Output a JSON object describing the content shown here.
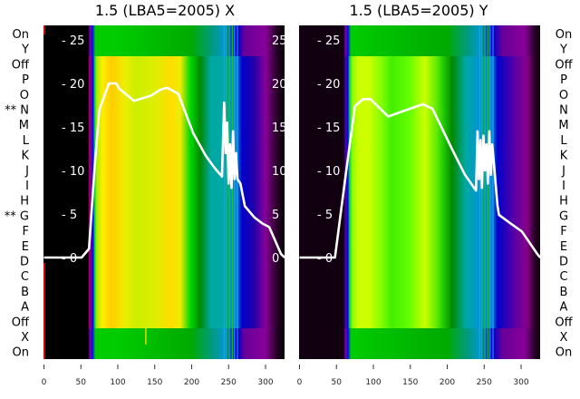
{
  "chart_data": [
    {
      "type": "line",
      "title": "1.5 (LBA5=2005) X",
      "xlim": [
        0,
        326
      ],
      "ylim": [
        -11.7,
        26.7
      ],
      "x_ticks": [
        "0",
        "50",
        "100",
        "150",
        "200",
        "250",
        "300"
      ],
      "y_ticks": [
        "0",
        "5",
        "10",
        "15",
        "20",
        "25"
      ],
      "series": [
        {
          "name": "X",
          "color": "#ffffff",
          "points": [
            [
              0,
              0
            ],
            [
              51,
              0
            ],
            [
              61,
              1
            ],
            [
              69,
              10.8
            ],
            [
              75,
              17
            ],
            [
              88,
              20
            ],
            [
              98,
              20
            ],
            [
              102,
              19.4
            ],
            [
              122,
              18
            ],
            [
              145,
              18.6
            ],
            [
              158,
              19.3
            ],
            [
              167,
              19.5
            ],
            [
              182,
              18.8
            ],
            [
              202,
              14.3
            ],
            [
              219,
              11.7
            ],
            [
              231,
              10.3
            ],
            [
              241,
              9.3
            ],
            [
              244,
              17.8
            ],
            [
              246,
              12
            ],
            [
              248,
              15.5
            ],
            [
              250,
              8.5
            ],
            [
              252,
              13
            ],
            [
              254,
              8
            ],
            [
              256,
              14.5
            ],
            [
              258,
              9
            ],
            [
              260,
              12
            ],
            [
              262,
              9
            ],
            [
              266,
              8.5
            ],
            [
              272,
              5.9
            ],
            [
              285,
              4.6
            ],
            [
              296,
              3.9
            ],
            [
              305,
              3.5
            ],
            [
              321,
              0.4
            ],
            [
              326,
              0
            ]
          ]
        }
      ],
      "background_stops": [
        [
          0,
          "#000000"
        ],
        [
          60,
          "#000000"
        ],
        [
          62,
          "#aa0066"
        ],
        [
          65,
          "#5500aa"
        ],
        [
          67,
          "#0000ff"
        ],
        [
          69,
          "#00cc44"
        ],
        [
          72,
          "#aaee00"
        ],
        [
          80,
          "#ffee00"
        ],
        [
          92,
          "#ffcc00"
        ],
        [
          110,
          "#eeee00"
        ],
        [
          125,
          "#ccee00"
        ],
        [
          150,
          "#ddee00"
        ],
        [
          172,
          "#ffdd00"
        ],
        [
          185,
          "#eeee00"
        ],
        [
          193,
          "#66dd00"
        ],
        [
          198,
          "#00dd00"
        ],
        [
          212,
          "#008800"
        ],
        [
          226,
          "#00a8a0"
        ],
        [
          242,
          "#00a8a8"
        ],
        [
          262,
          "#0088cc"
        ],
        [
          268,
          "#0000cc"
        ],
        [
          285,
          "#2200aa"
        ],
        [
          300,
          "#880099"
        ],
        [
          314,
          "#330033"
        ],
        [
          326,
          "#000000"
        ]
      ],
      "strip_stops": [
        [
          0,
          "#000000"
        ],
        [
          60,
          "#000000"
        ],
        [
          63,
          "#8800aa"
        ],
        [
          66,
          "#0000ff"
        ],
        [
          70,
          "#00cc00"
        ],
        [
          100,
          "#00cc00"
        ],
        [
          150,
          "#00bb00"
        ],
        [
          200,
          "#00aa00"
        ],
        [
          230,
          "#009988"
        ],
        [
          245,
          "#0099cc"
        ],
        [
          262,
          "#0000cc"
        ],
        [
          272,
          "#660099"
        ],
        [
          300,
          "#880099"
        ],
        [
          316,
          "#220022"
        ],
        [
          326,
          "#000000"
        ]
      ]
    },
    {
      "type": "line",
      "title": "1.5 (LBA5=2005) Y",
      "xlim": [
        0,
        326
      ],
      "ylim": [
        -11.7,
        26.7
      ],
      "x_ticks": [
        "0",
        "50",
        "100",
        "150",
        "200",
        "250",
        "300"
      ],
      "y_ticks": [
        "0",
        "5",
        "10",
        "15",
        "20",
        "25"
      ],
      "series": [
        {
          "name": "Y",
          "color": "#ffffff",
          "points": [
            [
              0,
              0
            ],
            [
              48,
              0
            ],
            [
              63,
              9.8
            ],
            [
              75,
              17.4
            ],
            [
              86,
              18.2
            ],
            [
              96,
              18.2
            ],
            [
              120,
              16.2
            ],
            [
              143,
              16.9
            ],
            [
              167,
              17.6
            ],
            [
              180,
              17.1
            ],
            [
              208,
              12.2
            ],
            [
              224,
              9.5
            ],
            [
              239,
              7.7
            ],
            [
              241,
              14.5
            ],
            [
              243,
              9
            ],
            [
              245,
              13.5
            ],
            [
              247,
              8
            ],
            [
              249,
              14
            ],
            [
              251,
              10
            ],
            [
              253,
              13
            ],
            [
              255,
              8.5
            ],
            [
              257,
              14.5
            ],
            [
              259,
              9.5
            ],
            [
              261,
              13
            ],
            [
              264,
              10
            ],
            [
              268,
              6
            ],
            [
              270,
              4.9
            ],
            [
              286,
              3.9
            ],
            [
              301,
              3
            ],
            [
              322,
              0.4
            ],
            [
              326,
              0
            ]
          ]
        }
      ],
      "background_stops": [
        [
          0,
          "#100010"
        ],
        [
          60,
          "#100010"
        ],
        [
          63,
          "#5500aa"
        ],
        [
          66,
          "#0000ff"
        ],
        [
          68,
          "#00cc44"
        ],
        [
          72,
          "#88ff00"
        ],
        [
          80,
          "#ccff00"
        ],
        [
          95,
          "#ccff00"
        ],
        [
          110,
          "#88ff00"
        ],
        [
          125,
          "#44ee00"
        ],
        [
          150,
          "#66ff00"
        ],
        [
          170,
          "#ccff00"
        ],
        [
          185,
          "#66ee00"
        ],
        [
          195,
          "#22cc00"
        ],
        [
          207,
          "#008800"
        ],
        [
          225,
          "#00a8a0"
        ],
        [
          240,
          "#0099cc"
        ],
        [
          262,
          "#0088cc"
        ],
        [
          268,
          "#0000cc"
        ],
        [
          290,
          "#5500aa"
        ],
        [
          308,
          "#880088"
        ],
        [
          320,
          "#200020"
        ],
        [
          326,
          "#100010"
        ]
      ],
      "strip_stops": [
        [
          0,
          "#100010"
        ],
        [
          60,
          "#100010"
        ],
        [
          63,
          "#8800aa"
        ],
        [
          66,
          "#0000ff"
        ],
        [
          70,
          "#00cc00"
        ],
        [
          200,
          "#00aa00"
        ],
        [
          230,
          "#009988"
        ],
        [
          245,
          "#0099cc"
        ],
        [
          262,
          "#0000cc"
        ],
        [
          275,
          "#660099"
        ],
        [
          305,
          "#880099"
        ],
        [
          320,
          "#200020"
        ],
        [
          326,
          "#100010"
        ]
      ]
    }
  ],
  "row_labels_left": [
    "On",
    "Y",
    "Off",
    "P",
    "O",
    "** N",
    "M",
    "L",
    "K",
    "J",
    "I",
    "H",
    "** G",
    "F",
    "E",
    "D",
    "C",
    "B",
    "A",
    "Off",
    "X",
    "On"
  ],
  "row_labels_right": [
    "On",
    "Y",
    "Off",
    "P",
    "O",
    "N",
    "M",
    "L",
    "K",
    "J",
    "I",
    "H",
    "G",
    "F",
    "E",
    "D",
    "C",
    "B",
    "A",
    "Off",
    "X",
    "On"
  ]
}
